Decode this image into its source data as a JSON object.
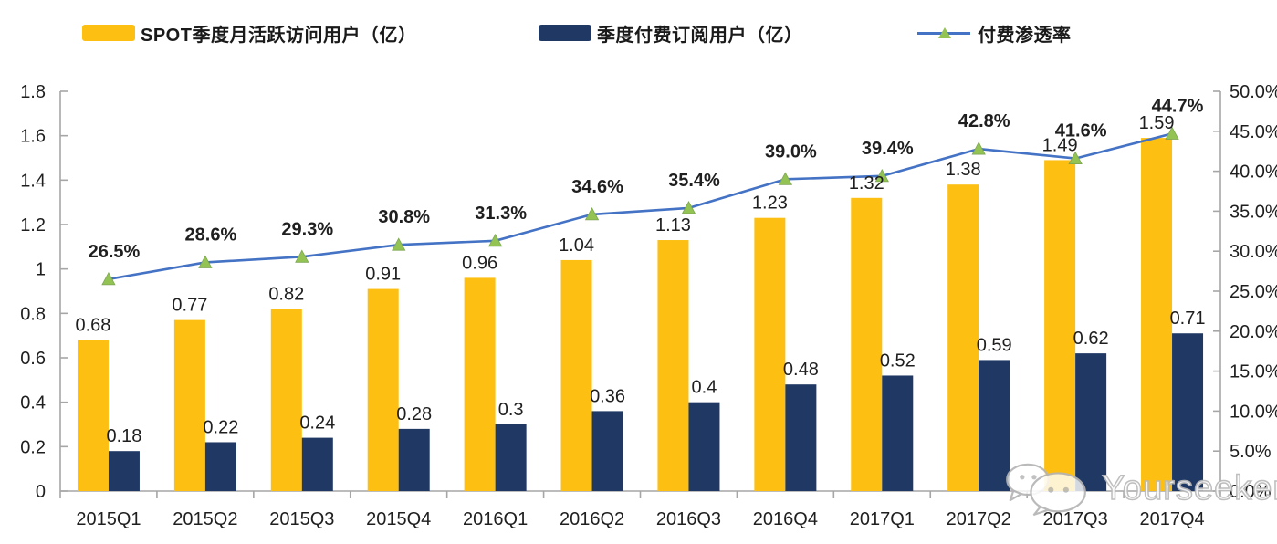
{
  "legend": {
    "items": [
      {
        "label": "SPOT季度月活跃访问用户（亿）",
        "marker": "bar-swatch",
        "color": "#FCBF12"
      },
      {
        "label": "季度付费订阅用户（亿）",
        "marker": "bar-swatch",
        "color": "#1F3864"
      },
      {
        "label": "付费渗透率",
        "marker": "line-with-triangle",
        "color": "#4472C4",
        "marker_color": "#92C353"
      }
    ]
  },
  "chart_data": {
    "type": "bar",
    "subtype": "grouped-bars-with-line",
    "categories": [
      "2015Q1",
      "2015Q2",
      "2015Q3",
      "2015Q4",
      "2016Q1",
      "2016Q2",
      "2016Q3",
      "2016Q4",
      "2017Q1",
      "2017Q2",
      "2017Q3",
      "2017Q4"
    ],
    "series": [
      {
        "name": "SPOT季度月活跃访问用户（亿）",
        "type": "bar",
        "axis": "left",
        "color": "#FCBF12",
        "values": [
          0.68,
          0.77,
          0.82,
          0.91,
          0.96,
          1.04,
          1.13,
          1.23,
          1.32,
          1.38,
          1.49,
          1.59
        ],
        "labels": [
          "0.68",
          "0.77",
          "0.82",
          "0.91",
          "0.96",
          "1.04",
          "1.13",
          "1.23",
          "1.32",
          "1.38",
          "1.49",
          "1.59"
        ]
      },
      {
        "name": "季度付费订阅用户（亿）",
        "type": "bar",
        "axis": "left",
        "color": "#1F3864",
        "values": [
          0.18,
          0.22,
          0.24,
          0.28,
          0.3,
          0.36,
          0.4,
          0.48,
          0.52,
          0.59,
          0.62,
          0.71
        ],
        "labels": [
          "0.18",
          "0.22",
          "0.24",
          "0.28",
          "0.3",
          "0.36",
          "0.4",
          "0.48",
          "0.52",
          "0.59",
          "0.62",
          "0.71"
        ]
      },
      {
        "name": "付费渗透率",
        "type": "line",
        "axis": "right",
        "color": "#4472C4",
        "marker": "triangle",
        "marker_color": "#92C353",
        "values": [
          26.5,
          28.6,
          29.3,
          30.8,
          31.3,
          34.6,
          35.4,
          39.0,
          39.4,
          42.8,
          41.6,
          44.7
        ],
        "labels": [
          "26.5%",
          "28.6%",
          "29.3%",
          "30.8%",
          "31.3%",
          "34.6%",
          "35.4%",
          "39.0%",
          "39.4%",
          "42.8%",
          "41.6%",
          "44.7%"
        ]
      }
    ],
    "left_axis": {
      "min": 0,
      "max": 1.8,
      "step": 0.2,
      "tick_labels": [
        "0",
        "0.2",
        "0.4",
        "0.6",
        "0.8",
        "1",
        "1.2",
        "1.4",
        "1.6",
        "1.8"
      ]
    },
    "right_axis": {
      "min": 0,
      "max": 50,
      "step": 5,
      "tick_labels": [
        "0.0%",
        "5.0%",
        "10.0%",
        "15.0%",
        "20.0%",
        "25.0%",
        "30.0%",
        "35.0%",
        "40.0%",
        "45.0%",
        "50.0%"
      ]
    },
    "grid": false,
    "legend_position": "top",
    "axis_color": "#A6A6A6",
    "text_color": "#1f1f1f"
  },
  "watermark": {
    "text": "Yourseeker",
    "icon": "wechat-icon"
  }
}
